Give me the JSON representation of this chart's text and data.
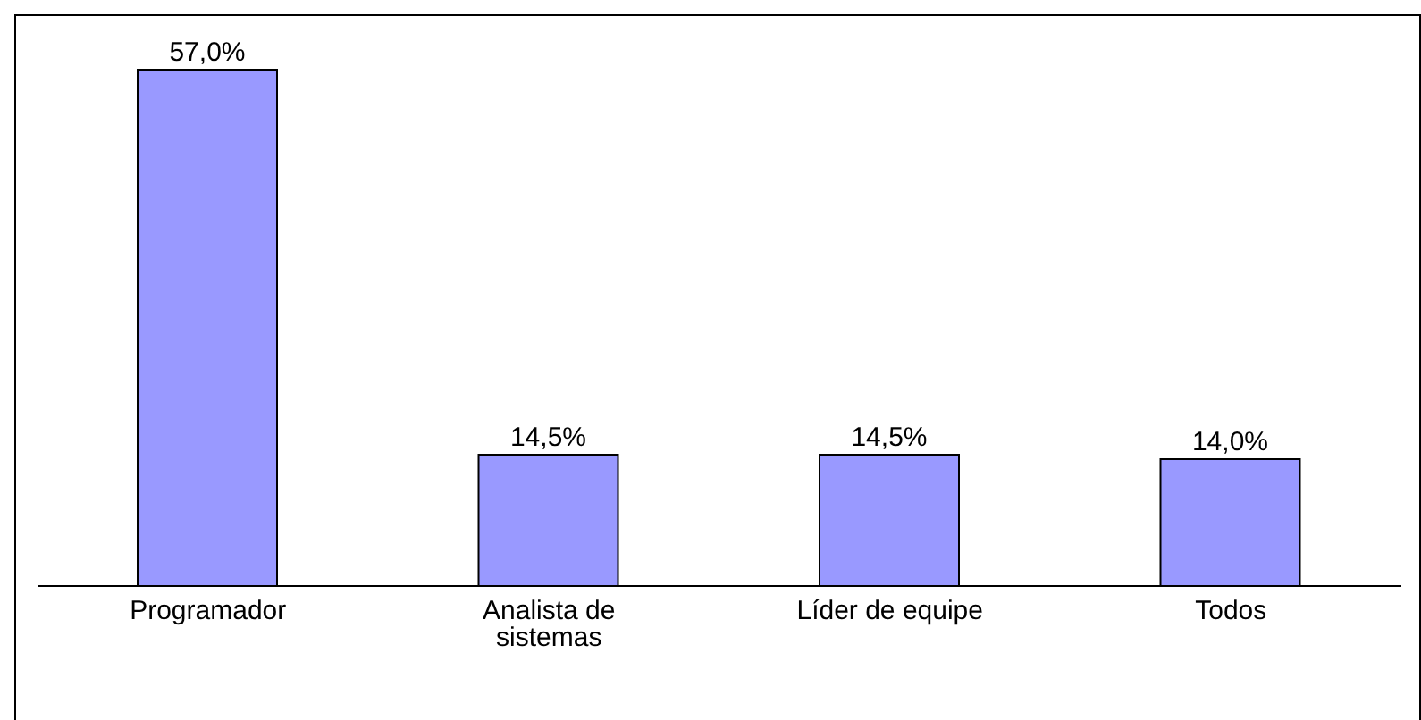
{
  "chart_data": {
    "type": "bar",
    "categories": [
      "Programador",
      "Analista de sistemas",
      "Líder de equipe",
      "Todos"
    ],
    "values": [
      57.0,
      14.5,
      14.5,
      14.0
    ],
    "value_labels": [
      "57,0%",
      "14,5%",
      "14,5%",
      "14,0%"
    ],
    "color": "#9999ff"
  }
}
